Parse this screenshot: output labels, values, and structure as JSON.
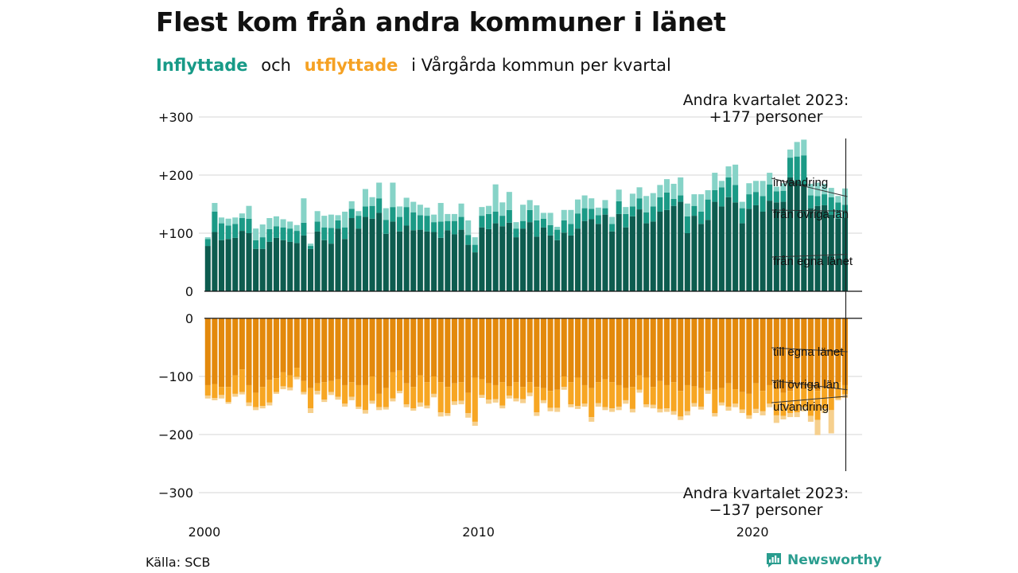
{
  "title": "Flest kom från andra kommuner i länet",
  "subtitle": {
    "in_word": "Inflyttade",
    "and_word": "och",
    "out_word": "utflyttade",
    "rest": "i Vårgårda kommun per kvartal"
  },
  "source": "Källa: SCB",
  "brand": {
    "name": "Newsworthy",
    "icon": "newsworthy-logo-icon"
  },
  "colors": {
    "in_own": "#0d5c4f",
    "in_other": "#1b9a86",
    "in_immig": "#86d3c7",
    "out_own": "#e3890c",
    "out_other": "#f7a623",
    "out_emig": "#f6d08e",
    "text": "#111111",
    "grid": "#dddddd",
    "brand": "#2a9d8f"
  },
  "chart_data": {
    "type": "bar",
    "stacked": true,
    "x_ticks": [
      "2000",
      "2010",
      "2020"
    ],
    "x_tick_values": [
      2000,
      2010,
      2020
    ],
    "x_range": [
      2000,
      2024
    ],
    "first_quarter": "2000-Q1",
    "last_quarter": "2023-Q2",
    "in_panel": {
      "ylim": [
        0,
        300
      ],
      "y_ticks": [
        "0",
        "+100",
        "+200",
        "+300"
      ],
      "y_tick_values": [
        0,
        100,
        200,
        300
      ],
      "series": [
        {
          "name": "från egna länet",
          "values": [
            78,
            102,
            88,
            90,
            92,
            104,
            100,
            73,
            73,
            85,
            92,
            88,
            85,
            83,
            96,
            73,
            103,
            88,
            82,
            108,
            90,
            126,
            108,
            128,
            125,
            135,
            99,
            120,
            103,
            113,
            105,
            106,
            103,
            102,
            92,
            105,
            98,
            106,
            80,
            67,
            110,
            107,
            117,
            112,
            118,
            93,
            108,
            119,
            94,
            110,
            96,
            88,
            101,
            96,
            108,
            121,
            124,
            116,
            132,
            103,
            133,
            110,
            129,
            141,
            117,
            120,
            137,
            140,
            147,
            154,
            100,
            130,
            116,
            123,
            154,
            146,
            162,
            153,
            117,
            142,
            148,
            137,
            156,
            153,
            154,
            196,
            190,
            185,
            143,
            147,
            148,
            132,
            125,
            127
          ]
        },
        {
          "name": "från övriga län",
          "values": [
            12,
            35,
            29,
            23,
            24,
            22,
            25,
            15,
            20,
            22,
            20,
            22,
            23,
            21,
            22,
            5,
            17,
            22,
            27,
            14,
            20,
            16,
            22,
            18,
            22,
            25,
            24,
            25,
            25,
            32,
            31,
            25,
            27,
            17,
            28,
            16,
            23,
            22,
            17,
            13,
            20,
            26,
            20,
            18,
            22,
            15,
            13,
            21,
            28,
            15,
            18,
            18,
            21,
            20,
            26,
            22,
            18,
            15,
            11,
            13,
            22,
            23,
            17,
            19,
            19,
            26,
            25,
            30,
            12,
            11,
            29,
            17,
            21,
            35,
            20,
            33,
            34,
            30,
            26,
            25,
            23,
            27,
            28,
            19,
            19,
            34,
            42,
            49,
            22,
            17,
            19,
            30,
            28,
            22
          ]
        },
        {
          "name": "invandring",
          "values": [
            3,
            15,
            10,
            12,
            11,
            8,
            22,
            20,
            22,
            19,
            17,
            14,
            12,
            10,
            42,
            4,
            18,
            20,
            23,
            9,
            27,
            13,
            8,
            30,
            15,
            27,
            20,
            42,
            18,
            16,
            18,
            18,
            14,
            13,
            32,
            12,
            12,
            23,
            25,
            13,
            15,
            14,
            47,
            23,
            31,
            11,
            28,
            17,
            26,
            10,
            21,
            5,
            18,
            24,
            24,
            22,
            18,
            13,
            14,
            12,
            20,
            12,
            22,
            19,
            28,
            23,
            21,
            23,
            26,
            31,
            22,
            20,
            30,
            16,
            30,
            11,
            19,
            35,
            11,
            19,
            19,
            26,
            20,
            8,
            13,
            14,
            25,
            27,
            20,
            23,
            18,
            16,
            11,
            28
          ]
        }
      ],
      "annotation": "Andra kvartalet 2023:\n+177 personer",
      "annotation_lines": [
        "Andra kvartalet 2023:",
        "+177 personer"
      ],
      "labels": [
        "invandring",
        "från övriga län",
        "från egna länet"
      ]
    },
    "out_panel": {
      "ylim": [
        -300,
        0
      ],
      "y_ticks": [
        "0",
        "−100",
        "−200",
        "−300"
      ],
      "y_tick_values": [
        0,
        -100,
        -200,
        -300
      ],
      "series": [
        {
          "name": "till egna länet",
          "values": [
            -115,
            -113,
            -118,
            -118,
            -98,
            -88,
            -115,
            -128,
            -118,
            -106,
            -103,
            -93,
            -98,
            -85,
            -108,
            -120,
            -112,
            -110,
            -108,
            -105,
            -115,
            -110,
            -115,
            -115,
            -100,
            -130,
            -120,
            -93,
            -90,
            -112,
            -118,
            -98,
            -110,
            -100,
            -110,
            -118,
            -112,
            -110,
            -128,
            -102,
            -105,
            -112,
            -115,
            -110,
            -117,
            -110,
            -118,
            -110,
            -118,
            -120,
            -125,
            -123,
            -100,
            -110,
            -102,
            -115,
            -120,
            -110,
            -105,
            -110,
            -115,
            -120,
            -118,
            -98,
            -102,
            -118,
            -108,
            -115,
            -110,
            -125,
            -115,
            -117,
            -120,
            -92,
            -123,
            -120,
            -112,
            -122,
            -127,
            -130,
            -112,
            -125,
            -115,
            -122,
            -128,
            -125,
            -117,
            -122,
            -120,
            -125,
            -120,
            -135,
            -110,
            -115
          ]
        },
        {
          "name": "till övriga län",
          "values": [
            -18,
            -24,
            -14,
            -26,
            -32,
            -39,
            -30,
            -25,
            -33,
            -39,
            -24,
            -24,
            -21,
            -16,
            -19,
            -35,
            -13,
            -30,
            -19,
            -30,
            -32,
            -25,
            -37,
            -43,
            -42,
            -23,
            -33,
            -45,
            -35,
            -36,
            -37,
            -47,
            -40,
            -30,
            -52,
            -45,
            -31,
            -32,
            -35,
            -76,
            -27,
            -28,
            -24,
            -40,
            -16,
            -28,
            -21,
            -18,
            -44,
            -21,
            -29,
            -31,
            -18,
            -38,
            -49,
            -32,
            -50,
            -36,
            -48,
            -45,
            -37,
            -21,
            -38,
            -25,
            -46,
            -31,
            -48,
            -40,
            -50,
            -44,
            -45,
            -29,
            -32,
            -32,
            -40,
            -25,
            -40,
            -25,
            -30,
            -37,
            -44,
            -35,
            -32,
            -45,
            -40,
            -38,
            -45,
            -31,
            -48,
            -50,
            -35,
            -23,
            -28,
            -16
          ]
        },
        {
          "name": "utvandring",
          "values": [
            -5,
            -4,
            -6,
            -3,
            -5,
            -4,
            -6,
            -5,
            -4,
            -5,
            -3,
            -5,
            -5,
            -4,
            -4,
            -8,
            -6,
            -4,
            -5,
            -5,
            -5,
            -6,
            -4,
            -6,
            -5,
            -5,
            -4,
            -5,
            -4,
            -5,
            -4,
            -7,
            -5,
            -6,
            -7,
            -5,
            -6,
            -6,
            -8,
            -7,
            -5,
            -7,
            -6,
            -5,
            -5,
            -5,
            -7,
            -6,
            -6,
            -5,
            -6,
            -7,
            -5,
            -5,
            -5,
            -5,
            -8,
            -6,
            -5,
            -6,
            -6,
            -6,
            -6,
            -5,
            -5,
            -6,
            -6,
            -6,
            -6,
            -6,
            -7,
            -6,
            -5,
            -6,
            -6,
            -5,
            -7,
            -6,
            -6,
            -6,
            -7,
            -7,
            -6,
            -13,
            -6,
            -7,
            -8,
            -7,
            -10,
            -26,
            -8,
            -40,
            -3,
            -6
          ]
        }
      ],
      "annotation": "Andra kvartalet 2023:\n−137 personer",
      "annotation_lines": [
        "Andra kvartalet 2023:",
        "−137 personer"
      ],
      "labels": [
        "till egna länet",
        "till övriga län",
        "utvandring"
      ]
    }
  }
}
